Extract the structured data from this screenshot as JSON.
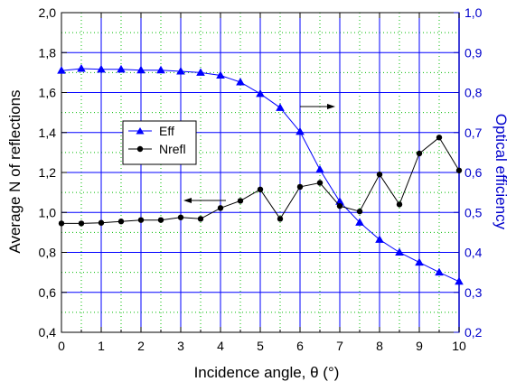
{
  "chart_data": {
    "type": "line",
    "xlabel": "Incidence angle, θ (°)",
    "ylabel_left": "Average N of reflections",
    "ylabel_right": "Optical efficiency",
    "xlim": [
      0,
      10
    ],
    "ylim_left": [
      0.4,
      2.0
    ],
    "ylim_right": [
      0.2,
      1.0
    ],
    "x_ticks": [
      "0",
      "1",
      "2",
      "3",
      "4",
      "5",
      "6",
      "7",
      "8",
      "9",
      "10"
    ],
    "y_left_ticks": [
      "0,4",
      "0,6",
      "0,8",
      "1,0",
      "1,2",
      "1,4",
      "1,6",
      "1,8",
      "2,0"
    ],
    "y_right_ticks": [
      "0,2",
      "0,3",
      "0,4",
      "0,5",
      "0,6",
      "0,7",
      "0,8",
      "0,9",
      "1,0"
    ],
    "x_tick_values": [
      0,
      1,
      2,
      3,
      4,
      5,
      6,
      7,
      8,
      9,
      10
    ],
    "y_left_tick_values": [
      0.4,
      0.6,
      0.8,
      1.0,
      1.2,
      1.4,
      1.6,
      1.8,
      2.0
    ],
    "y_right_tick_values": [
      0.2,
      0.3,
      0.4,
      0.5,
      0.6,
      0.7,
      0.8,
      0.9,
      1.0
    ],
    "grid": true,
    "legend_position": "center-left",
    "colors": {
      "axis_left": "#000000",
      "axis_right": "#0000cc",
      "eff": "#0000ff",
      "nrefl": "#000000",
      "grid_major": "#0000ff",
      "grid_minor": "#00bb00"
    },
    "x": [
      0,
      0.5,
      1,
      1.5,
      2,
      2.5,
      3,
      3.5,
      4,
      4.5,
      5,
      5.5,
      6,
      6.5,
      7,
      7.5,
      8,
      8.5,
      9,
      9.5,
      10
    ],
    "series": [
      {
        "name": "Eff",
        "axis": "right",
        "marker": "triangle",
        "values": [
          0.855,
          0.86,
          0.858,
          0.858,
          0.856,
          0.856,
          0.853,
          0.85,
          0.843,
          0.826,
          0.797,
          0.762,
          0.702,
          0.607,
          0.527,
          0.475,
          0.432,
          0.4,
          0.375,
          0.35,
          0.327
        ]
      },
      {
        "name": "Nrefl",
        "axis": "left",
        "marker": "circle",
        "values": [
          0.945,
          0.945,
          0.948,
          0.955,
          0.962,
          0.962,
          0.975,
          0.968,
          1.022,
          1.058,
          1.115,
          0.968,
          1.128,
          1.148,
          1.032,
          1.005,
          1.19,
          1.04,
          1.295,
          1.375,
          1.21
        ]
      }
    ]
  }
}
